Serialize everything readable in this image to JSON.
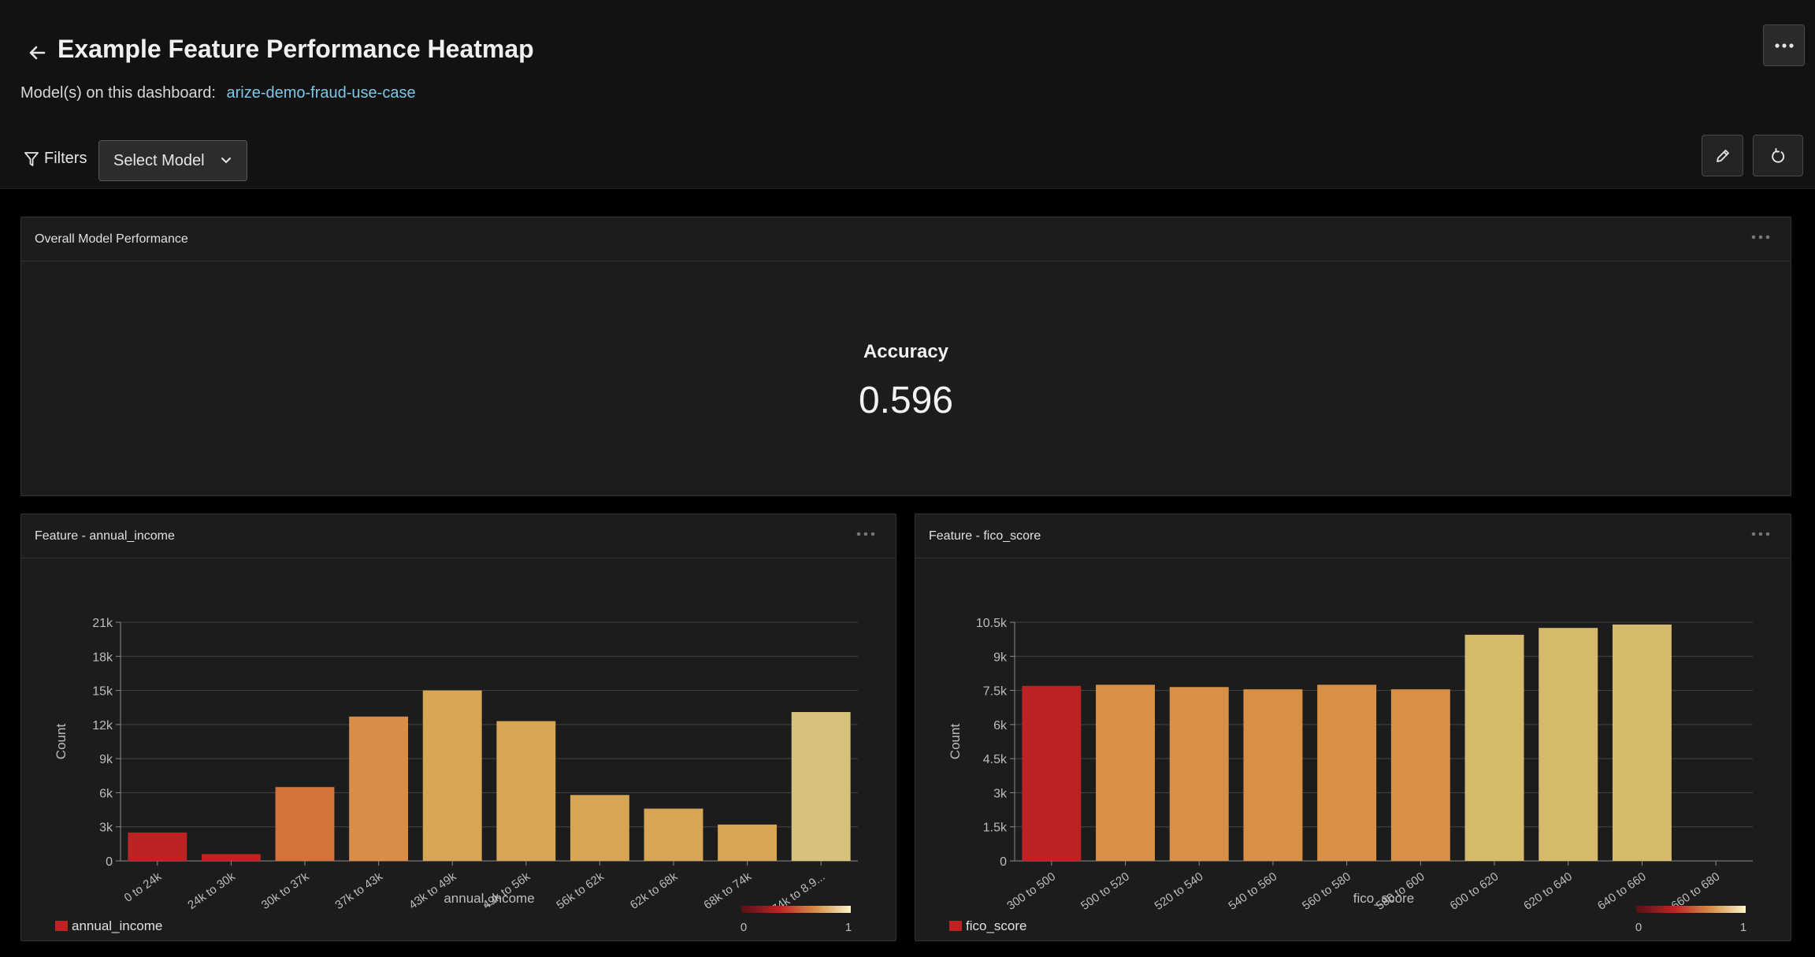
{
  "header": {
    "title": "Example Feature Performance Heatmap",
    "models_label": "Model(s) on this dashboard:",
    "model_link": "arize-demo-fraud-use-case",
    "filters_label": "Filters",
    "select_model_label": "Select Model"
  },
  "overall": {
    "title": "Overall Model Performance",
    "metric_name": "Accuracy",
    "metric_value": "0.596"
  },
  "chart_data": [
    {
      "type": "bar",
      "panel_title": "Feature - annual_income",
      "categories": [
        "0 to 24k",
        "24k to 30k",
        "30k to 37k",
        "37k to 43k",
        "43k to 49k",
        "49k to 56k",
        "56k to 62k",
        "62k to 68k",
        "68k to 74k",
        "74k to 8.9..."
      ],
      "values": [
        2500,
        600,
        6500,
        12700,
        15000,
        12300,
        5800,
        4600,
        3200,
        13100
      ],
      "colors": [
        "#bc2424",
        "#bc2424",
        "#d3723a",
        "#d88d48",
        "#d6a655",
        "#d6a655",
        "#d6a655",
        "#d6a655",
        "#d6a655",
        "#d6c27a"
      ],
      "xlabel": "annual_income",
      "ylabel": "Count",
      "ylim": [
        0,
        21000
      ],
      "yticks": [
        0,
        3000,
        6000,
        9000,
        12000,
        15000,
        18000,
        21000
      ],
      "ytick_labels": [
        "0",
        "3k",
        "6k",
        "9k",
        "12k",
        "15k",
        "18k",
        "21k"
      ],
      "legend": "annual_income",
      "scale_min": "0",
      "scale_max": "1",
      "grid": true
    },
    {
      "type": "bar",
      "panel_title": "Feature - fico_score",
      "categories": [
        "300 to 500",
        "500 to 520",
        "520 to 540",
        "540 to 560",
        "560 to 580",
        "580 to 600",
        "600 to 620",
        "620 to 640",
        "640 to 660",
        "660 to 680"
      ],
      "values": [
        7700,
        7750,
        7650,
        7550,
        7750,
        7550,
        9950,
        10250,
        10400,
        0
      ],
      "colors": [
        "#bc2424",
        "#d88f46",
        "#d88f46",
        "#d88f46",
        "#d88f46",
        "#d88f46",
        "#d6ba6c",
        "#d6ba6c",
        "#d6ba6c",
        "#d6ba6c"
      ],
      "xlabel": "fico_score",
      "ylabel": "Count",
      "ylim": [
        0,
        10500
      ],
      "yticks": [
        0,
        1500,
        3000,
        4500,
        6000,
        7500,
        9000,
        10500
      ],
      "ytick_labels": [
        "0",
        "1.5k",
        "3k",
        "4.5k",
        "6k",
        "7.5k",
        "9k",
        "10.5k"
      ],
      "legend": "fico_score",
      "scale_min": "0",
      "scale_max": "1",
      "grid": true
    }
  ]
}
